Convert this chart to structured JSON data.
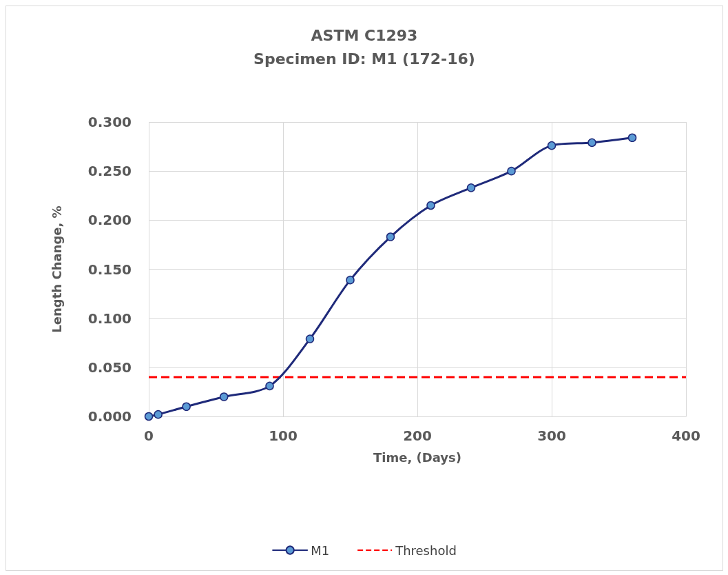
{
  "chart_data": {
    "type": "line",
    "title": "ASTM C1293\nSpecimen ID: M1 (172-16)",
    "xlabel": "Time, (Days)",
    "ylabel": "Length Change, %",
    "x": [
      0,
      7,
      28,
      56,
      90,
      120,
      150,
      180,
      210,
      240,
      270,
      300,
      330,
      360
    ],
    "series": [
      {
        "name": "M1",
        "color": "#1f2a7a",
        "values": [
          0,
          0.002,
          0.01,
          0.02,
          0.031,
          0.079,
          0.139,
          0.183,
          0.215,
          0.233,
          0.25,
          0.276,
          0.279,
          0.284
        ]
      }
    ],
    "xlim": [
      0,
      400
    ],
    "xticks": [
      0,
      100,
      200,
      300,
      400
    ],
    "ylim": [
      0,
      0.3
    ],
    "yticks": [
      {
        "value": 0,
        "label": "0.000"
      },
      {
        "value": 0.05,
        "label": "0.050"
      },
      {
        "value": 0.1,
        "label": "0.100"
      },
      {
        "value": 0.15,
        "label": "0.150"
      },
      {
        "value": 0.2,
        "label": "0.200"
      },
      {
        "value": 0.25,
        "label": "0.250"
      },
      {
        "value": 0.3,
        "label": "0.300"
      }
    ],
    "ref_lines": [
      {
        "axis": "y",
        "value": 0.04,
        "label": "Threshold",
        "color": "#ff0000",
        "line_style": "dashed"
      }
    ],
    "grid": true,
    "legend": "bottom",
    "marker": "circle",
    "line_style": "solid"
  }
}
